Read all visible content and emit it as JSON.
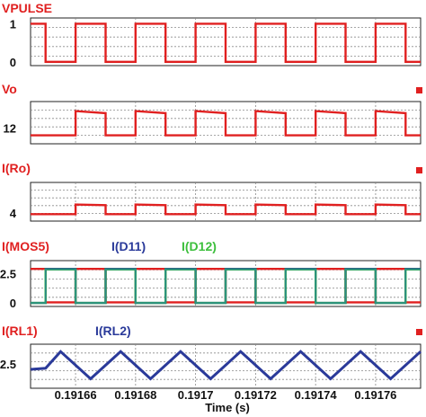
{
  "chart_data": {
    "type": "line",
    "xlabel": "Time (s)",
    "x_ticks": [
      "0.19166",
      "0.19168",
      "0.1917",
      "0.19172",
      "0.19174",
      "0.19176"
    ],
    "x_tick_values": [
      0.19166,
      0.19168,
      0.1917,
      0.19172,
      0.19174,
      0.19176
    ],
    "xlim": [
      0.191645,
      0.191775
    ],
    "grid": true,
    "colors": {
      "red": "#e02020",
      "blue": "#2a3a9a",
      "green": "#3cbf3c",
      "teal": "#2a8a8a"
    },
    "panels": [
      {
        "titles": [
          {
            "text": "VPULSE",
            "color": "#e02020"
          }
        ],
        "y_ticks": [
          {
            "label": "1",
            "value": 1
          },
          {
            "label": "0",
            "value": 0
          }
        ],
        "ylim": [
          -0.1,
          1.15
        ],
        "series": [
          {
            "name": "VPULSE",
            "color": "#e02020",
            "x": [
              0.191645,
              0.19165,
              0.19165,
              0.19166,
              0.19166,
              0.19167,
              0.19167,
              0.19168,
              0.19168,
              0.19169,
              0.19169,
              0.1917,
              0.1917,
              0.19171,
              0.19171,
              0.19172,
              0.19172,
              0.19173,
              0.19173,
              0.19174,
              0.19174,
              0.19175,
              0.19175,
              0.19176,
              0.19176,
              0.19177,
              0.19177,
              0.191775
            ],
            "y": [
              1,
              1,
              0,
              0,
              1,
              1,
              0,
              0,
              1,
              1,
              0,
              0,
              1,
              1,
              0,
              0,
              1,
              1,
              0,
              0,
              1,
              1,
              0,
              0,
              1,
              1,
              0,
              0
            ]
          }
        ]
      },
      {
        "titles": [
          {
            "text": "Vo",
            "color": "#e02020"
          }
        ],
        "y_ticks": [
          {
            "label": "12",
            "value": 12
          }
        ],
        "ylim": [
          10.5,
          14.5
        ],
        "series": [
          {
            "name": "Vo",
            "color": "#e02020",
            "x": [
              0.191645,
              0.19166,
              0.19166,
              0.19167,
              0.19167,
              0.19168,
              0.19168,
              0.19169,
              0.19169,
              0.1917,
              0.1917,
              0.19171,
              0.19171,
              0.19172,
              0.19172,
              0.19173,
              0.19173,
              0.19174,
              0.19174,
              0.19175,
              0.19175,
              0.19176,
              0.19176,
              0.19177,
              0.19177,
              0.191775
            ],
            "y": [
              11.3,
              11.3,
              13.6,
              13.4,
              11.3,
              11.3,
              13.6,
              13.4,
              11.3,
              11.3,
              13.6,
              13.4,
              11.3,
              11.3,
              13.6,
              13.4,
              11.3,
              11.3,
              13.6,
              13.4,
              11.3,
              11.3,
              13.6,
              13.4,
              11.3,
              11.3
            ]
          }
        ]
      },
      {
        "titles": [
          {
            "text": "I(Ro)",
            "color": "#e02020"
          }
        ],
        "y_ticks": [
          {
            "label": "4",
            "value": 4
          }
        ],
        "ylim": [
          3.4,
          6.2
        ],
        "series": [
          {
            "name": "I(Ro)",
            "color": "#e02020",
            "x": [
              0.191645,
              0.19166,
              0.19166,
              0.19167,
              0.19167,
              0.19168,
              0.19168,
              0.19169,
              0.19169,
              0.1917,
              0.1917,
              0.19171,
              0.19171,
              0.19172,
              0.19172,
              0.19173,
              0.19173,
              0.19174,
              0.19174,
              0.19175,
              0.19175,
              0.19176,
              0.19176,
              0.19177,
              0.19177,
              0.191775
            ],
            "y": [
              3.9,
              3.9,
              4.6,
              4.55,
              3.9,
              3.9,
              4.6,
              4.55,
              3.9,
              3.9,
              4.6,
              4.55,
              3.9,
              3.9,
              4.6,
              4.55,
              3.9,
              3.9,
              4.6,
              4.55,
              3.9,
              3.9,
              4.6,
              4.55,
              3.9,
              3.9
            ]
          }
        ]
      },
      {
        "titles": [
          {
            "text": "I(MOS5)",
            "color": "#e02020"
          },
          {
            "text": "I(D11)",
            "color": "#2a3a9a"
          },
          {
            "text": "I(D12)",
            "color": "#3cbf3c"
          }
        ],
        "y_ticks": [
          {
            "label": "2.5",
            "value": 2.5
          },
          {
            "label": "0",
            "value": 0
          }
        ],
        "ylim": [
          -0.3,
          3.6
        ],
        "series": [
          {
            "name": "I(MOS5)",
            "color": "#e02020",
            "x": [
              0.191645,
              0.19165,
              0.19165,
              0.19166,
              0.19166,
              0.19167,
              0.19167,
              0.19168,
              0.19168,
              0.19169,
              0.19169,
              0.1917,
              0.1917,
              0.19171,
              0.19171,
              0.19172,
              0.19172,
              0.19173,
              0.19173,
              0.19174,
              0.19174,
              0.19175,
              0.19175,
              0.19176,
              0.19176,
              0.19177,
              0.19177,
              0.191775
            ],
            "y": [
              2.9,
              2.9,
              0.05,
              0.05,
              2.9,
              2.9,
              0.05,
              0.05,
              2.9,
              2.9,
              0.05,
              0.05,
              2.9,
              2.9,
              0.05,
              0.05,
              2.9,
              2.9,
              0.05,
              0.05,
              2.9,
              2.9,
              0.05,
              0.05,
              2.9,
              2.9,
              0.05,
              0.05
            ]
          },
          {
            "name": "I(D11)",
            "color": "#2a3a9a",
            "x": [
              0.191645,
              0.19165,
              0.19165,
              0.19166,
              0.19166,
              0.19167,
              0.19167,
              0.19168,
              0.19168,
              0.19169,
              0.19169,
              0.1917,
              0.1917,
              0.19171,
              0.19171,
              0.19172,
              0.19172,
              0.19173,
              0.19173,
              0.19174,
              0.19174,
              0.19175,
              0.19175,
              0.19176,
              0.19176,
              0.19177,
              0.19177,
              0.191775
            ],
            "y": [
              0,
              0,
              2.9,
              2.9,
              0,
              0,
              2.9,
              2.9,
              0,
              0,
              2.9,
              2.9,
              0,
              0,
              2.9,
              2.9,
              0,
              0,
              2.9,
              2.9,
              0,
              0,
              2.9,
              2.9,
              0,
              0,
              2.9,
              2.9
            ]
          },
          {
            "name": "I(D12)",
            "color": "#3cbf3c",
            "x": [
              0.191645,
              0.19165,
              0.19165,
              0.19166,
              0.19166,
              0.19167,
              0.19167,
              0.19168,
              0.19168,
              0.19169,
              0.19169,
              0.1917,
              0.1917,
              0.19171,
              0.19171,
              0.19172,
              0.19172,
              0.19173,
              0.19173,
              0.19174,
              0.19174,
              0.19175,
              0.19175,
              0.19176,
              0.19176,
              0.19177,
              0.19177,
              0.191775
            ],
            "y": [
              0,
              0,
              2.85,
              2.85,
              0,
              0,
              2.85,
              2.85,
              0,
              0,
              2.85,
              2.85,
              0,
              0,
              2.85,
              2.85,
              0,
              0,
              2.85,
              2.85,
              0,
              0,
              2.85,
              2.85,
              0,
              0,
              2.85,
              2.85
            ]
          }
        ]
      },
      {
        "titles": [
          {
            "text": "I(RL1)",
            "color": "#e02020"
          },
          {
            "text": "I(RL2)",
            "color": "#2a3a9a"
          }
        ],
        "y_ticks": [
          {
            "label": "2.5",
            "value": 2.5
          }
        ],
        "ylim": [
          0.2,
          4.4
        ],
        "series": [
          {
            "name": "I(RL1)",
            "color": "#e02020",
            "x": [
              0.191645,
              0.19165,
              0.191655,
              0.191665,
              0.191675,
              0.191685,
              0.191695,
              0.191705,
              0.191715,
              0.191725,
              0.191735,
              0.191745,
              0.191755,
              0.191765,
              0.191775
            ],
            "y": [
              2.0,
              2.1,
              3.7,
              1.1,
              3.7,
              1.1,
              3.7,
              1.1,
              3.7,
              1.1,
              3.7,
              1.1,
              3.7,
              1.1,
              3.7
            ]
          },
          {
            "name": "I(RL2)",
            "color": "#2a3a9a",
            "x": [
              0.191645,
              0.19165,
              0.191655,
              0.191665,
              0.191675,
              0.191685,
              0.191695,
              0.191705,
              0.191715,
              0.191725,
              0.191735,
              0.191745,
              0.191755,
              0.191765,
              0.191775
            ],
            "y": [
              2.0,
              2.1,
              3.7,
              1.1,
              3.7,
              1.1,
              3.7,
              1.1,
              3.7,
              1.1,
              3.7,
              1.1,
              3.7,
              1.1,
              3.7
            ]
          }
        ]
      }
    ]
  }
}
